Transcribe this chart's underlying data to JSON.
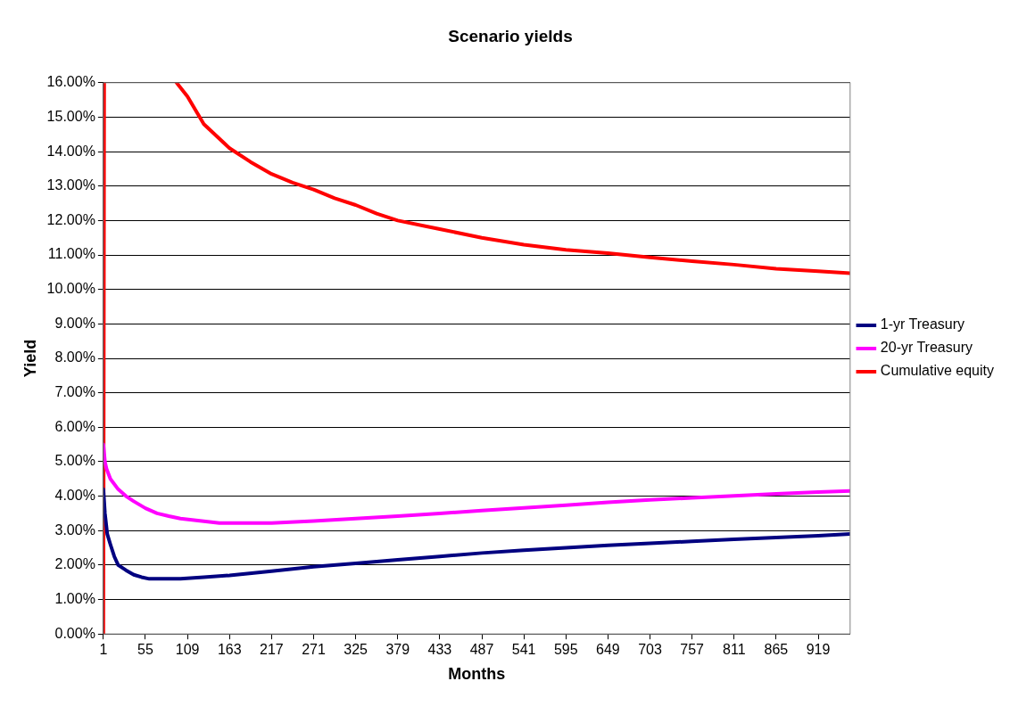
{
  "chart_data": {
    "type": "line",
    "title": "Scenario yields",
    "xlabel": "Months",
    "ylabel": "Yield",
    "xlim": [
      1,
      960
    ],
    "xticks": [
      1,
      55,
      109,
      163,
      217,
      271,
      325,
      379,
      433,
      487,
      541,
      595,
      649,
      703,
      757,
      811,
      865,
      919
    ],
    "ylim": [
      0,
      16
    ],
    "yticks": [
      {
        "value": 0,
        "label": "0.00%"
      },
      {
        "value": 1,
        "label": "1.00%"
      },
      {
        "value": 2,
        "label": "2.00%"
      },
      {
        "value": 3,
        "label": "3.00%"
      },
      {
        "value": 4,
        "label": "4.00%"
      },
      {
        "value": 5,
        "label": "5.00%"
      },
      {
        "value": 6,
        "label": "6.00%"
      },
      {
        "value": 7,
        "label": "7.00%"
      },
      {
        "value": 8,
        "label": "8.00%"
      },
      {
        "value": 9,
        "label": "9.00%"
      },
      {
        "value": 10,
        "label": "10.00%"
      },
      {
        "value": 11,
        "label": "11.00%"
      },
      {
        "value": 12,
        "label": "12.00%"
      },
      {
        "value": 13,
        "label": "13.00%"
      },
      {
        "value": 14,
        "label": "14.00%"
      },
      {
        "value": 15,
        "label": "15.00%"
      },
      {
        "value": 16,
        "label": "16.00%"
      }
    ],
    "grid": "y",
    "legend": "right",
    "marker": "none",
    "line_style": "solid",
    "series": [
      {
        "name": "1-yr Treasury",
        "color": "#000080",
        "x": [
          1,
          3,
          6,
          10,
          15,
          20,
          30,
          40,
          50,
          60,
          80,
          100,
          130,
          163,
          217,
          271,
          325,
          379,
          433,
          487,
          541,
          595,
          649,
          703,
          757,
          811,
          865,
          919,
          960
        ],
        "values": [
          4.2,
          3.5,
          2.9,
          2.6,
          2.25,
          2.0,
          1.85,
          1.72,
          1.65,
          1.6,
          1.6,
          1.6,
          1.65,
          1.7,
          1.82,
          1.95,
          2.05,
          2.15,
          2.25,
          2.35,
          2.43,
          2.5,
          2.57,
          2.63,
          2.69,
          2.75,
          2.8,
          2.85,
          2.9
        ]
      },
      {
        "name": "20-yr Treasury",
        "color": "#ff00ff",
        "x": [
          1,
          3,
          5,
          10,
          20,
          30,
          40,
          55,
          70,
          85,
          100,
          130,
          150,
          217,
          271,
          325,
          379,
          433,
          487,
          541,
          595,
          649,
          703,
          757,
          811,
          865,
          919,
          960
        ],
        "values": [
          5.5,
          5.0,
          4.8,
          4.5,
          4.2,
          4.0,
          3.85,
          3.65,
          3.5,
          3.42,
          3.35,
          3.27,
          3.22,
          3.22,
          3.28,
          3.35,
          3.42,
          3.5,
          3.58,
          3.66,
          3.74,
          3.82,
          3.89,
          3.95,
          4.01,
          4.07,
          4.12,
          4.15
        ]
      },
      {
        "name": "Cumulative equity",
        "color": "#ff0000",
        "x": [
          1,
          2,
          3,
          95,
          109,
          130,
          163,
          190,
          217,
          244,
          271,
          298,
          325,
          352,
          379,
          433,
          487,
          541,
          595,
          649,
          703,
          757,
          811,
          865,
          919,
          960
        ],
        "values": [
          0,
          16,
          null,
          16,
          15.6,
          14.8,
          14.1,
          13.7,
          13.35,
          13.1,
          12.9,
          12.65,
          12.45,
          12.2,
          12.0,
          11.75,
          11.5,
          11.3,
          11.15,
          11.05,
          10.93,
          10.82,
          10.72,
          10.6,
          10.53,
          10.47
        ]
      }
    ]
  }
}
